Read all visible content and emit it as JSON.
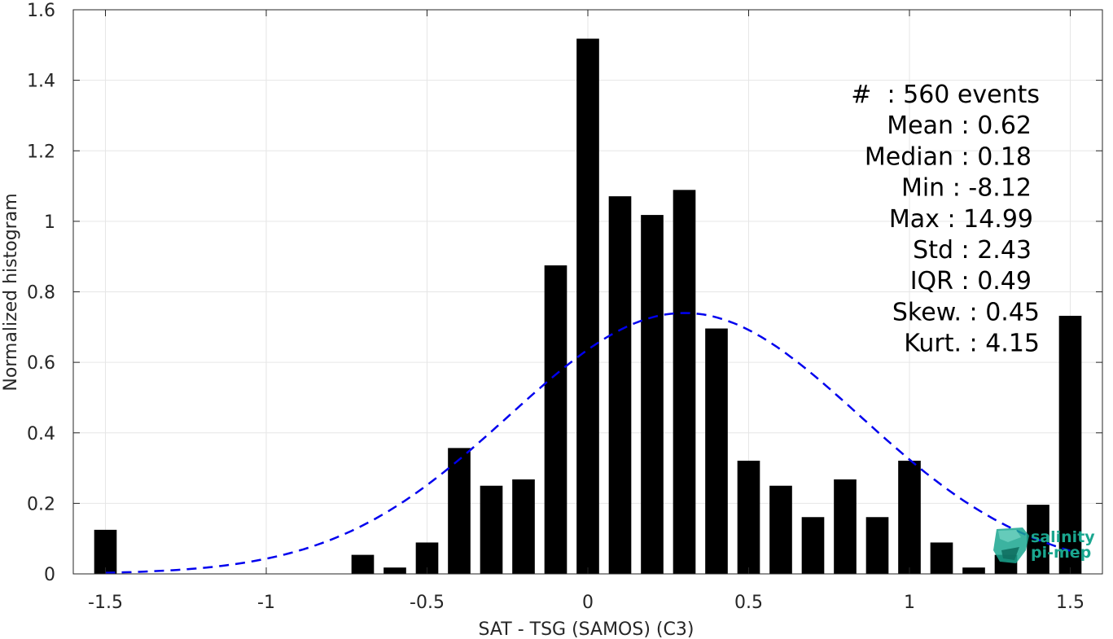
{
  "chart_data": {
    "type": "bar",
    "title": "",
    "xlabel": "SAT - TSG (SAMOS) (C3)",
    "ylabel": "Normalized histogram",
    "xlim": [
      -1.6,
      1.6
    ],
    "ylim": [
      0,
      1.6
    ],
    "xticks": [
      -1.5,
      -1,
      -0.5,
      0,
      0.5,
      1,
      1.5
    ],
    "xtick_labels": [
      "-1.5",
      "-1",
      "-0.5",
      "0",
      "0.5",
      "1",
      "1.5"
    ],
    "yticks": [
      0,
      0.2,
      0.4,
      0.6,
      0.8,
      1,
      1.2,
      1.4,
      1.6
    ],
    "ytick_labels": [
      "0",
      "0.2",
      "0.4",
      "0.6",
      "0.8",
      "1",
      "1.2",
      "1.4",
      "1.6"
    ],
    "grid": true,
    "bar_color": "#000000",
    "bars": [
      {
        "x": -1.5,
        "y": 0.125
      },
      {
        "x": -0.7,
        "y": 0.054
      },
      {
        "x": -0.6,
        "y": 0.018
      },
      {
        "x": -0.5,
        "y": 0.089
      },
      {
        "x": -0.4,
        "y": 0.357
      },
      {
        "x": -0.3,
        "y": 0.25
      },
      {
        "x": -0.2,
        "y": 0.268
      },
      {
        "x": -0.1,
        "y": 0.875
      },
      {
        "x": 0.0,
        "y": 1.518
      },
      {
        "x": 0.1,
        "y": 1.071
      },
      {
        "x": 0.2,
        "y": 1.018
      },
      {
        "x": 0.3,
        "y": 1.089
      },
      {
        "x": 0.4,
        "y": 0.696
      },
      {
        "x": 0.5,
        "y": 0.321
      },
      {
        "x": 0.6,
        "y": 0.25
      },
      {
        "x": 0.7,
        "y": 0.161
      },
      {
        "x": 0.8,
        "y": 0.268
      },
      {
        "x": 0.9,
        "y": 0.161
      },
      {
        "x": 1.0,
        "y": 0.321
      },
      {
        "x": 1.1,
        "y": 0.089
      },
      {
        "x": 1.2,
        "y": 0.018
      },
      {
        "x": 1.3,
        "y": 0.054
      },
      {
        "x": 1.4,
        "y": 0.196
      },
      {
        "x": 1.5,
        "y": 0.732
      }
    ],
    "bar_width": 0.07,
    "fit_curve": {
      "type": "gaussian",
      "style": "dashed",
      "color": "#0000ee",
      "mean": 0.3,
      "peak": 0.74,
      "sigma": 0.545,
      "x_range": [
        -1.5,
        1.5
      ]
    },
    "stats": [
      {
        "label": "#  : 560 events"
      },
      {
        "label": "Mean : 0.62"
      },
      {
        "label": "Median : 0.18"
      },
      {
        "label": "Min : -8.12"
      },
      {
        "label": "Max : 14.99"
      },
      {
        "label": "Std : 2.43"
      },
      {
        "label": "IQR : 0.49"
      },
      {
        "label": "Skew. : 0.45"
      },
      {
        "label": "Kurt. : 4.15"
      }
    ]
  },
  "logo": {
    "line1": "salinity",
    "line2": "pi-mep",
    "color": "#1aa68f"
  }
}
